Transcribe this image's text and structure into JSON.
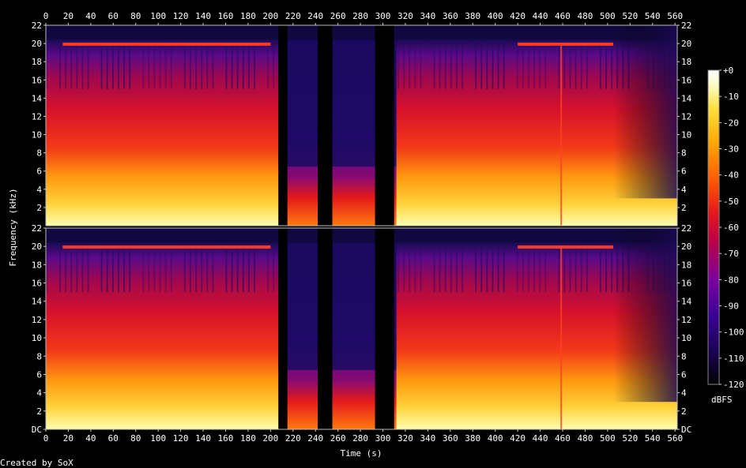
{
  "chart_data": {
    "type": "heatmap",
    "title": "",
    "xlabel": "Time (s)",
    "ylabel": "Frequency (kHz)",
    "xlim": [
      0,
      562
    ],
    "ylim": [
      0,
      22
    ],
    "x_ticks": [
      "0",
      "20",
      "40",
      "60",
      "80",
      "100",
      "120",
      "140",
      "160",
      "180",
      "200",
      "220",
      "240",
      "260",
      "280",
      "300",
      "320",
      "340",
      "360",
      "380",
      "400",
      "420",
      "440",
      "460",
      "480",
      "500",
      "520",
      "540",
      "560"
    ],
    "y_ticks": [
      "DC",
      "2",
      "4",
      "6",
      "8",
      "10",
      "12",
      "14",
      "16",
      "18",
      "20",
      "22"
    ],
    "channels": [
      "left",
      "right"
    ],
    "colorbar": {
      "label": "dBFS",
      "ticks": [
        "+0",
        "-10",
        "-20",
        "-30",
        "-40",
        "-50",
        "-60",
        "-70",
        "-80",
        "-90",
        "-100",
        "-110",
        "-120"
      ],
      "range": [
        -120,
        0
      ],
      "colors": [
        "#000000",
        "#1a0050",
        "#3a0096",
        "#7a00a0",
        "#b8004a",
        "#e8181a",
        "#ff6000",
        "#ffa800",
        "#ffe040",
        "#ffffd0",
        "#ffffff"
      ]
    },
    "silent_gaps_s": [
      [
        207,
        215
      ],
      [
        242,
        255
      ],
      [
        293,
        310
      ]
    ],
    "footer": "Created by SoX"
  }
}
